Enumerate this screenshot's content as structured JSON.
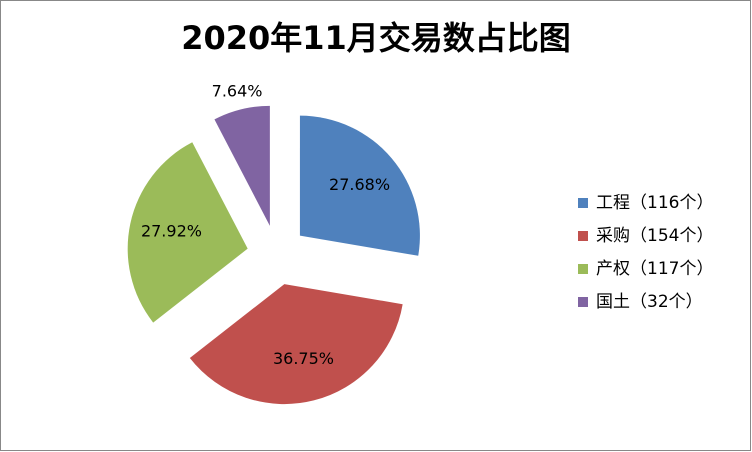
{
  "chart_data": {
    "type": "pie",
    "title": "2020年11月交易数占比图",
    "series": [
      {
        "name": "工程（116个）",
        "color": "#4f81bd"
      },
      {
        "name": "采购（154个）",
        "color": "#c0504d"
      },
      {
        "name": "产权（117个）",
        "color": "#9bbb59"
      },
      {
        "name": "国土（32个）",
        "color": "#8064a2"
      }
    ],
    "values": [
      27.68,
      36.75,
      27.92,
      7.64
    ],
    "value_labels": [
      "27.68%",
      "36.75%",
      "27.92%",
      "7.64%"
    ],
    "legend": "right"
  }
}
